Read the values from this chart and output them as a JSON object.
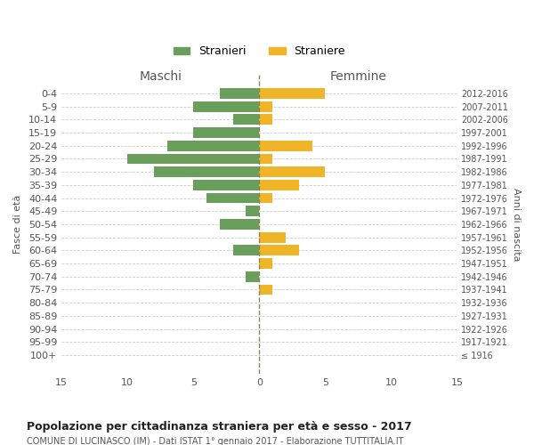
{
  "age_groups": [
    "100+",
    "95-99",
    "90-94",
    "85-89",
    "80-84",
    "75-79",
    "70-74",
    "65-69",
    "60-64",
    "55-59",
    "50-54",
    "45-49",
    "40-44",
    "35-39",
    "30-34",
    "25-29",
    "20-24",
    "15-19",
    "10-14",
    "5-9",
    "0-4"
  ],
  "birth_years": [
    "≤ 1916",
    "1917-1921",
    "1922-1926",
    "1927-1931",
    "1932-1936",
    "1937-1941",
    "1942-1946",
    "1947-1951",
    "1952-1956",
    "1957-1961",
    "1962-1966",
    "1967-1971",
    "1972-1976",
    "1977-1981",
    "1982-1986",
    "1987-1991",
    "1992-1996",
    "1997-2001",
    "2002-2006",
    "2007-2011",
    "2012-2016"
  ],
  "males": [
    0,
    0,
    0,
    0,
    0,
    0,
    1,
    0,
    2,
    0,
    3,
    1,
    4,
    5,
    8,
    10,
    7,
    5,
    2,
    5,
    3
  ],
  "females": [
    0,
    0,
    0,
    0,
    0,
    1,
    0,
    1,
    3,
    2,
    0,
    0,
    1,
    3,
    5,
    1,
    4,
    0,
    1,
    1,
    5
  ],
  "male_color": "#6a9e5b",
  "female_color": "#f0b429",
  "title": "Popolazione per cittadinanza straniera per età e sesso - 2017",
  "subtitle": "COMUNE DI LUCINASCO (IM) - Dati ISTAT 1° gennaio 2017 - Elaborazione TUTTITALIA.IT",
  "xlabel_left": "Maschi",
  "xlabel_right": "Femmine",
  "ylabel_left": "Fasce di età",
  "ylabel_right": "Anni di nascita",
  "legend_male": "Stranieri",
  "legend_female": "Straniere",
  "xlim": 15,
  "xtick_labels": [
    "15",
    "10",
    "5",
    "0",
    "5",
    "10",
    "15"
  ],
  "background_color": "#ffffff",
  "grid_color": "#cccccc",
  "bar_height": 0.8
}
